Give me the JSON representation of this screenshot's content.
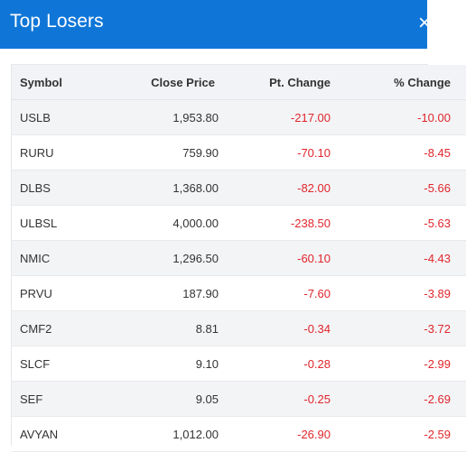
{
  "header": {
    "title": "Top Losers",
    "close_glyph": "×",
    "background": "#0f76d8"
  },
  "table": {
    "columns": [
      "Symbol",
      "Close Price",
      "Pt. Change",
      "% Change"
    ],
    "negative_color": "#e0262c",
    "rows": [
      {
        "symbol": "USLB",
        "close": "1,953.80",
        "pt_change": "-217.00",
        "pct_change": "-10.00"
      },
      {
        "symbol": "RURU",
        "close": "759.90",
        "pt_change": "-70.10",
        "pct_change": "-8.45"
      },
      {
        "symbol": "DLBS",
        "close": "1,368.00",
        "pt_change": "-82.00",
        "pct_change": "-5.66"
      },
      {
        "symbol": "ULBSL",
        "close": "4,000.00",
        "pt_change": "-238.50",
        "pct_change": "-5.63"
      },
      {
        "symbol": "NMIC",
        "close": "1,296.50",
        "pt_change": "-60.10",
        "pct_change": "-4.43"
      },
      {
        "symbol": "PRVU",
        "close": "187.90",
        "pt_change": "-7.60",
        "pct_change": "-3.89"
      },
      {
        "symbol": "CMF2",
        "close": "8.81",
        "pt_change": "-0.34",
        "pct_change": "-3.72"
      },
      {
        "symbol": "SLCF",
        "close": "9.10",
        "pt_change": "-0.28",
        "pct_change": "-2.99"
      },
      {
        "symbol": "SEF",
        "close": "9.05",
        "pt_change": "-0.25",
        "pct_change": "-2.69"
      },
      {
        "symbol": "AVYAN",
        "close": "1,012.00",
        "pt_change": "-26.90",
        "pct_change": "-2.59"
      }
    ]
  }
}
